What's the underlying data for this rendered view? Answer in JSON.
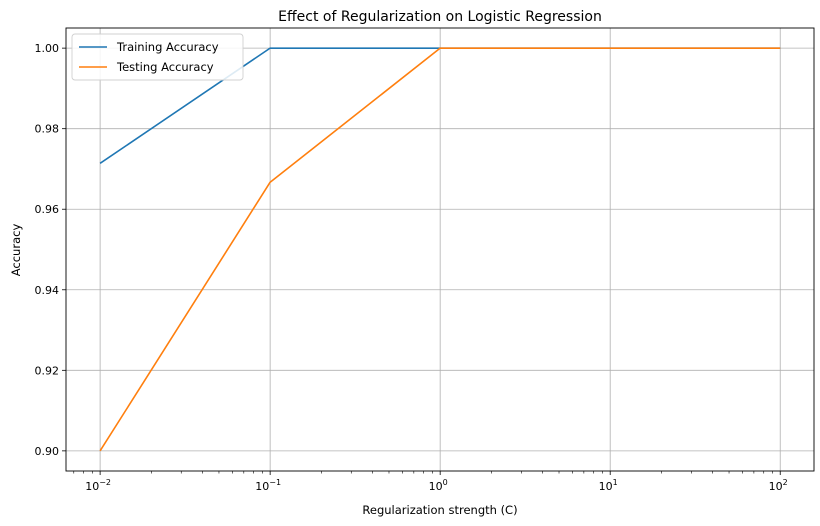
{
  "chart_data": {
    "type": "line",
    "title": "Effect of Regularization on Logistic Regression",
    "xlabel": "Regularization strength (C)",
    "ylabel": "Accuracy",
    "xscale": "log",
    "x": [
      0.01,
      0.1,
      1,
      10,
      100
    ],
    "xticks": [
      {
        "base": "10",
        "exp": "−2",
        "value": 0.01
      },
      {
        "base": "10",
        "exp": "−1",
        "value": 0.1
      },
      {
        "base": "10",
        "exp": "0",
        "value": 1
      },
      {
        "base": "10",
        "exp": "1",
        "value": 10
      },
      {
        "base": "10",
        "exp": "2",
        "value": 100
      }
    ],
    "yticks": [
      "0.90",
      "0.92",
      "0.94",
      "0.96",
      "0.98",
      "1.00"
    ],
    "xlim": [
      0.0063,
      158
    ],
    "ylim": [
      0.895,
      1.005
    ],
    "grid": true,
    "legend_position": "upper-left",
    "series": [
      {
        "name": "Training Accuracy",
        "color": "#1f77b4",
        "values": [
          0.9714,
          1.0,
          1.0,
          1.0,
          1.0
        ]
      },
      {
        "name": "Testing Accuracy",
        "color": "#ff7f0e",
        "values": [
          0.9,
          0.9667,
          1.0,
          1.0,
          1.0
        ]
      }
    ]
  }
}
